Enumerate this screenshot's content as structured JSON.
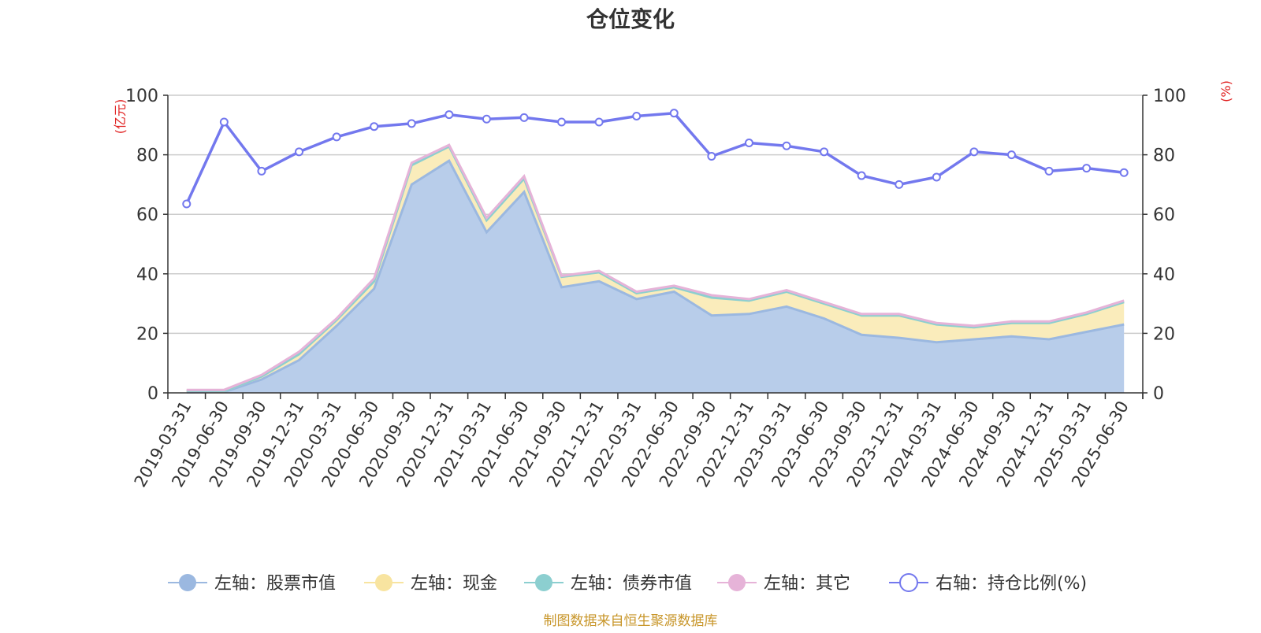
{
  "chart_data": {
    "type": "area",
    "title": "仓位变化",
    "left_axis_unit": "(亿元)",
    "right_axis_unit": "(%)",
    "y_left_lim": [
      0,
      100
    ],
    "y_right_lim": [
      0,
      100
    ],
    "y_ticks": [
      0,
      20,
      40,
      60,
      80,
      100
    ],
    "grid": true,
    "legend_position": "bottom-center",
    "categories": [
      "2019-03-31",
      "2019-06-30",
      "2019-09-30",
      "2019-12-31",
      "2020-03-31",
      "2020-06-30",
      "2020-09-30",
      "2020-12-31",
      "2021-03-31",
      "2021-06-30",
      "2021-09-30",
      "2021-12-31",
      "2022-03-31",
      "2022-06-30",
      "2022-09-30",
      "2022-12-31",
      "2023-03-31",
      "2023-06-30",
      "2023-09-30",
      "2023-12-31",
      "2024-03-31",
      "2024-06-30",
      "2024-09-30",
      "2024-12-31",
      "2025-03-31",
      "2025-06-30"
    ],
    "series": [
      {
        "name": "左轴：股票市值",
        "axis": "left",
        "color": "#9bb8e0",
        "fill": "#b8cdea",
        "values": [
          0.2,
          0.3,
          4.5,
          11,
          22.5,
          35,
          70,
          78,
          54,
          67.5,
          35.5,
          37.5,
          31.5,
          34,
          26,
          26.5,
          29,
          25,
          19.5,
          18.5,
          17,
          18,
          19,
          18,
          20.5,
          23
        ]
      },
      {
        "name": "左轴：现金",
        "axis": "left",
        "color": "#f8e4a0",
        "fill": "#faecbb",
        "values": [
          0.5,
          0.3,
          1.0,
          2.0,
          2.0,
          2.5,
          6.5,
          4.8,
          4.0,
          4.5,
          3.5,
          3.0,
          2.0,
          1.5,
          6.0,
          4.5,
          5.0,
          5.0,
          6.5,
          7.5,
          6.0,
          4.0,
          4.5,
          5.5,
          6.0,
          7.5
        ]
      },
      {
        "name": "左轴：债券市值",
        "axis": "left",
        "color": "#8ccfd0",
        "fill": "#aadcdc",
        "values": [
          0,
          0,
          0,
          0,
          0,
          0,
          0,
          0,
          0,
          0,
          0,
          0,
          0,
          0,
          0,
          0,
          0,
          0,
          0,
          0,
          0,
          0,
          0,
          0,
          0,
          0
        ]
      },
      {
        "name": "左轴：其它",
        "axis": "left",
        "color": "#e6b3d8",
        "fill": "#f0cce6",
        "values": [
          0.3,
          0.4,
          0.5,
          0.8,
          0.5,
          1.0,
          0.8,
          0.5,
          0.8,
          0.8,
          0.3,
          0.5,
          0.5,
          0.5,
          0.8,
          0.5,
          0.5,
          0.5,
          0.5,
          0.5,
          0.5,
          0.5,
          0.5,
          0.5,
          0.5,
          0.5
        ]
      },
      {
        "name": "右轴：持仓比例(%)",
        "axis": "right",
        "type": "line",
        "color": "#7378ee",
        "values": [
          63.5,
          91,
          74.5,
          81,
          86,
          89.5,
          90.5,
          93.5,
          92,
          92.5,
          91,
          91,
          93,
          94,
          79.5,
          84,
          83,
          81,
          73,
          70,
          72.5,
          81,
          80,
          74.5,
          75.5,
          74
        ]
      }
    ]
  },
  "footer": {
    "source": "制图数据来自恒生聚源数据库"
  }
}
